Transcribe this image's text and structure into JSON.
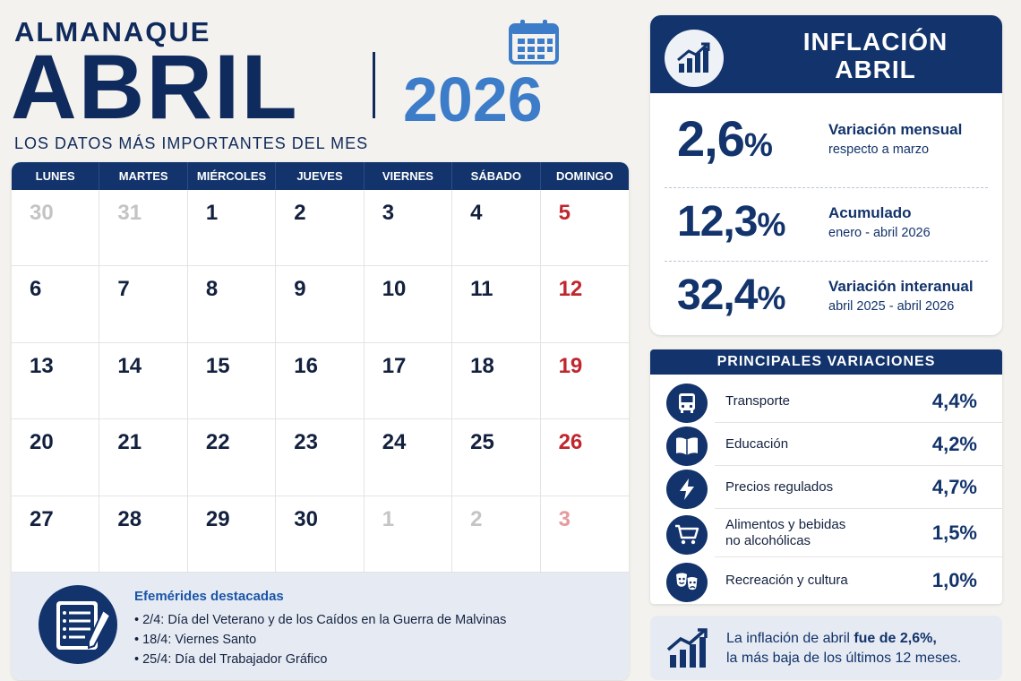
{
  "header": {
    "kicker": "ALMANAQUE",
    "month": "ABRIL",
    "year": "2026",
    "subtitle": "LOS DATOS MÁS IMPORTANTES DEL MES"
  },
  "calendar": {
    "weekdays": [
      "LUNES",
      "MARTES",
      "MIÉRCOLES",
      "JUEVES",
      "VIERNES",
      "SÁBADO",
      "DOMINGO"
    ],
    "weeks": [
      [
        {
          "d": "30",
          "muted": true
        },
        {
          "d": "31",
          "muted": true
        },
        {
          "d": "1"
        },
        {
          "d": "2"
        },
        {
          "d": "3"
        },
        {
          "d": "4"
        },
        {
          "d": "5"
        }
      ],
      [
        {
          "d": "6"
        },
        {
          "d": "7"
        },
        {
          "d": "8"
        },
        {
          "d": "9"
        },
        {
          "d": "10"
        },
        {
          "d": "11"
        },
        {
          "d": "12"
        }
      ],
      [
        {
          "d": "13"
        },
        {
          "d": "14"
        },
        {
          "d": "15"
        },
        {
          "d": "16"
        },
        {
          "d": "17"
        },
        {
          "d": "18"
        },
        {
          "d": "19"
        }
      ],
      [
        {
          "d": "20"
        },
        {
          "d": "21"
        },
        {
          "d": "22"
        },
        {
          "d": "23"
        },
        {
          "d": "24"
        },
        {
          "d": "25"
        },
        {
          "d": "26"
        }
      ],
      [
        {
          "d": "27"
        },
        {
          "d": "28"
        },
        {
          "d": "29"
        },
        {
          "d": "30"
        },
        {
          "d": "1",
          "muted": true
        },
        {
          "d": "2",
          "muted": true
        },
        {
          "d": "3",
          "muted": true
        }
      ]
    ]
  },
  "efemerides": {
    "title": "Efemérides destacadas",
    "items": [
      "2/4: Día del Veterano y de los Caídos en la Guerra de Malvinas",
      "18/4: Viernes Santo",
      "25/4: Día del Trabajador Gráfico"
    ]
  },
  "inflation": {
    "title_line1": "INFLACIÓN",
    "title_line2": "ABRIL",
    "stats": [
      {
        "value": "2,6",
        "pct": "%",
        "label": "Variación mensual",
        "sub": "respecto a marzo"
      },
      {
        "value": "12,3",
        "pct": "%",
        "label": "Acumulado",
        "sub": "enero - abril 2026"
      },
      {
        "value": "32,4",
        "pct": "%",
        "label": "Variación interanual",
        "sub": "abril 2025 - abril 2026"
      }
    ]
  },
  "variations": {
    "title": "PRINCIPALES VARIACIONES",
    "items": [
      {
        "icon": "bus-icon",
        "label_l1": "Transporte",
        "label_l2": "",
        "value": "4,4%"
      },
      {
        "icon": "book-icon",
        "label_l1": "Educación",
        "label_l2": "",
        "value": "4,2%"
      },
      {
        "icon": "lightning-icon",
        "label_l1": "Precios regulados",
        "label_l2": "",
        "value": "4,7%"
      },
      {
        "icon": "cart-icon",
        "label_l1": "Alimentos y bebidas",
        "label_l2": "no alcohólicas",
        "value": "1,5%"
      },
      {
        "icon": "theater-masks-icon",
        "label_l1": "Recreación y cultura",
        "label_l2": "",
        "value": "1,0%"
      }
    ]
  },
  "note": {
    "text_pre": "La inflación de abril ",
    "text_bold": "fue de 2,6%,",
    "text_line2": "la más baja de los últimos 12 meses."
  },
  "colors": {
    "navy": "#12336b",
    "accent_blue": "#3c7cc8",
    "sunday_red": "#c0262d",
    "muted_gray": "#c4c4c4"
  }
}
